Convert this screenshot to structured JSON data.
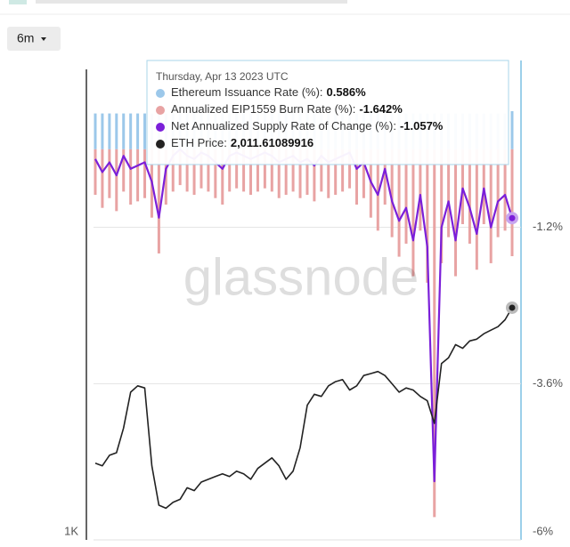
{
  "chart_data": {
    "type": "line",
    "range_button": "6m",
    "watermark": "glassnode",
    "ylim": [
      1000,
      4100
    ],
    "log_scale": true,
    "yticks": [
      {
        "value": 1000,
        "label": "1K"
      }
    ],
    "y2lim": [
      -6,
      1.2
    ],
    "y2ticks": [
      {
        "value": -1.2,
        "label": "-1.2%"
      },
      {
        "value": -3.6,
        "label": "-3.6%"
      },
      {
        "value": -6,
        "label": "-6%"
      }
    ],
    "grid": true,
    "series": [
      {
        "name": "Ethereum Issuance Rate (%):",
        "color": "#9cc8ea",
        "style": "bar",
        "axis": "y2",
        "values": [
          0.55,
          0.55,
          0.55,
          0.55,
          0.55,
          0.55,
          0.55,
          0.55,
          0.55,
          0.55,
          0.55,
          0.55,
          0.55,
          0.55,
          0.55,
          0.55,
          0.55,
          0.55,
          0.55,
          0.55,
          0.55,
          0.55,
          0.55,
          0.55,
          0.55,
          0.55,
          0.55,
          0.55,
          0.55,
          0.55,
          0.55,
          0.55,
          0.55,
          0.55,
          0.55,
          0.55,
          0.55,
          0.55,
          0.55,
          0.55,
          0.55,
          0.55,
          0.55,
          0.55,
          0.55,
          0.55,
          0.55,
          0.55,
          0.55,
          0.55,
          0.55,
          0.55,
          0.55,
          0.55,
          0.55,
          0.55,
          0.55,
          0.55,
          0.55,
          0.586
        ]
      },
      {
        "name": "Annualized EIP1559 Burn Rate (%):",
        "color": "#e8a3a3",
        "style": "bar",
        "axis": "y2",
        "values": [
          -0.7,
          -0.9,
          -0.75,
          -0.95,
          -0.65,
          -0.85,
          -0.8,
          -0.75,
          -1.05,
          -1.6,
          -0.85,
          -0.65,
          -0.55,
          -0.65,
          -0.7,
          -0.6,
          -0.65,
          -0.75,
          -0.85,
          -0.65,
          -0.6,
          -0.65,
          -0.7,
          -0.65,
          -0.6,
          -0.65,
          -0.75,
          -0.7,
          -0.65,
          -0.75,
          -0.7,
          -0.8,
          -0.65,
          -0.75,
          -0.7,
          -0.65,
          -0.6,
          -0.85,
          -0.75,
          -1.05,
          -1.25,
          -0.85,
          -1.35,
          -1.65,
          -1.45,
          -1.95,
          -1.25,
          -2.05,
          -5.65,
          -1.75,
          -1.35,
          -1.95,
          -1.15,
          -1.45,
          -1.85,
          -1.15,
          -1.75,
          -1.35,
          -1.25,
          -1.642
        ]
      },
      {
        "name": "Net Annualized Supply Rate of Change (%):",
        "color": "#7b1fd9",
        "style": "line",
        "axis": "y2",
        "values": [
          -0.15,
          -0.35,
          -0.2,
          -0.4,
          -0.1,
          -0.3,
          -0.25,
          -0.2,
          -0.5,
          -1.05,
          -0.3,
          -0.1,
          0.0,
          -0.1,
          -0.15,
          -0.05,
          -0.1,
          -0.2,
          -0.3,
          -0.1,
          -0.05,
          -0.1,
          -0.15,
          -0.1,
          -0.05,
          -0.1,
          -0.2,
          -0.15,
          -0.1,
          -0.2,
          -0.15,
          -0.25,
          -0.1,
          -0.2,
          -0.15,
          -0.1,
          -0.05,
          -0.3,
          -0.2,
          -0.5,
          -0.7,
          -0.3,
          -0.8,
          -1.1,
          -0.9,
          -1.4,
          -0.7,
          -1.5,
          -5.1,
          -1.2,
          -0.8,
          -1.4,
          -0.6,
          -0.9,
          -1.3,
          -0.6,
          -1.2,
          -0.8,
          -0.7,
          -1.057
        ]
      },
      {
        "name": "ETH Price:",
        "color": "#222222",
        "style": "line",
        "axis": "y",
        "values": [
          1260,
          1250,
          1290,
          1300,
          1400,
          1560,
          1590,
          1580,
          1250,
          1110,
          1100,
          1120,
          1130,
          1170,
          1160,
          1190,
          1200,
          1210,
          1220,
          1210,
          1230,
          1220,
          1200,
          1240,
          1260,
          1280,
          1250,
          1200,
          1230,
          1320,
          1500,
          1550,
          1540,
          1590,
          1610,
          1620,
          1570,
          1590,
          1640,
          1650,
          1660,
          1640,
          1600,
          1560,
          1580,
          1570,
          1540,
          1520,
          1420,
          1700,
          1730,
          1800,
          1780,
          1820,
          1830,
          1860,
          1880,
          1900,
          1940,
          2011.61089916
        ]
      }
    ],
    "tooltip": {
      "date": "Thursday, Apr 13 2023 UTC",
      "labels": [
        "0.586%",
        "-1.642%",
        "-1.057%",
        "2,011.61089916"
      ]
    }
  }
}
